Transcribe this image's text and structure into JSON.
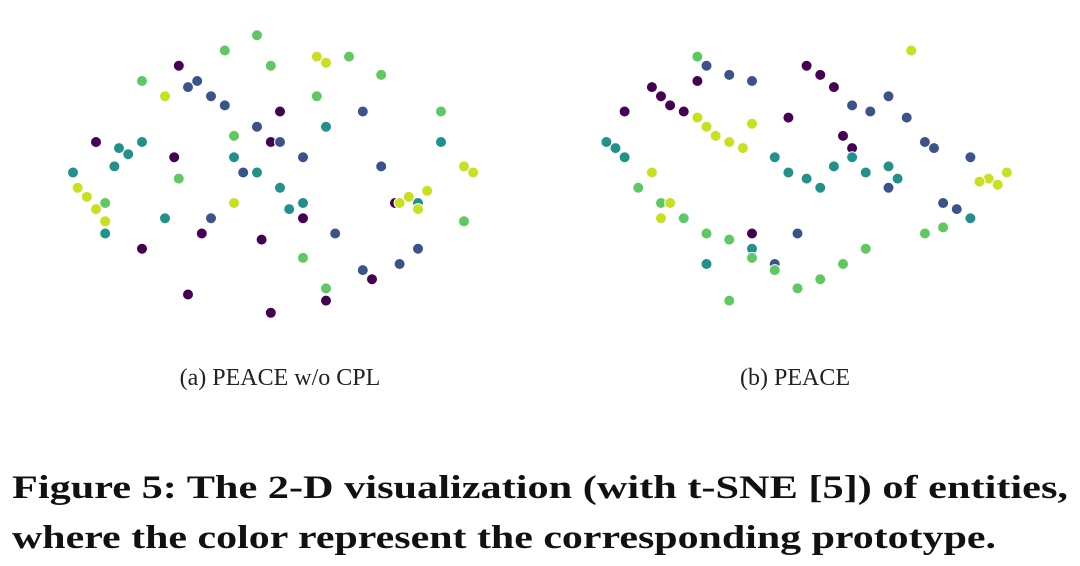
{
  "chart_data": [
    {
      "type": "scatter",
      "subcaption": "(a)  PEACE w/o CPL",
      "series": [
        {
          "color": "#440154",
          "x": [
            10,
            27,
            33,
            46,
            48,
            50,
            30,
            55,
            70,
            75,
            28,
            20,
            60,
            48
          ],
          "values": [
            60,
            55,
            30,
            28,
            60,
            70,
            10,
            35,
            15,
            40,
            85,
            25,
            8,
            4
          ]
        },
        {
          "color": "#3b528b",
          "x": [
            30,
            32,
            35,
            38,
            45,
            50,
            55,
            62,
            68,
            72,
            76,
            80,
            68,
            35,
            42
          ],
          "values": [
            78,
            80,
            75,
            72,
            65,
            60,
            55,
            30,
            70,
            52,
            20,
            25,
            18,
            35,
            50
          ]
        },
        {
          "color": "#21918c",
          "x": [
            15,
            17,
            14,
            20,
            40,
            45,
            50,
            52,
            55,
            60,
            25,
            80,
            85,
            5,
            12
          ],
          "values": [
            58,
            56,
            52,
            60,
            55,
            50,
            45,
            38,
            40,
            65,
            35,
            40,
            60,
            50,
            30
          ]
        },
        {
          "color": "#5ec962",
          "x": [
            12,
            28,
            40,
            45,
            20,
            55,
            60,
            72,
            85,
            90,
            65,
            38,
            48,
            58
          ],
          "values": [
            40,
            48,
            62,
            95,
            80,
            22,
            12,
            82,
            70,
            34,
            88,
            90,
            85,
            75
          ]
        },
        {
          "color": "#c8e020",
          "x": [
            6,
            8,
            10,
            12,
            76,
            78,
            80,
            82,
            90,
            92,
            58,
            60,
            40,
            25
          ],
          "values": [
            45,
            42,
            38,
            34,
            40,
            42,
            38,
            44,
            52,
            50,
            88,
            86,
            40,
            75
          ]
        }
      ]
    },
    {
      "type": "scatter",
      "subcaption": "(b)  PEACE",
      "series": [
        {
          "color": "#440154",
          "x": [
            18,
            20,
            22,
            25,
            28,
            55,
            58,
            60,
            62,
            48,
            52,
            12,
            40
          ],
          "values": [
            78,
            75,
            72,
            70,
            80,
            82,
            78,
            62,
            58,
            68,
            85,
            70,
            30
          ]
        },
        {
          "color": "#3b528b",
          "x": [
            30,
            35,
            40,
            62,
            66,
            70,
            74,
            78,
            80,
            82,
            85,
            88,
            70,
            50,
            45
          ],
          "values": [
            85,
            82,
            80,
            72,
            70,
            75,
            68,
            60,
            58,
            40,
            38,
            55,
            45,
            30,
            20
          ]
        },
        {
          "color": "#21918c",
          "x": [
            8,
            10,
            12,
            45,
            48,
            52,
            55,
            58,
            62,
            65,
            70,
            72,
            40,
            30,
            88
          ],
          "values": [
            60,
            58,
            55,
            55,
            50,
            48,
            45,
            52,
            55,
            50,
            52,
            48,
            25,
            20,
            35
          ]
        },
        {
          "color": "#5ec962",
          "x": [
            15,
            20,
            25,
            30,
            35,
            40,
            45,
            50,
            55,
            60,
            65,
            78,
            82,
            35,
            28
          ],
          "values": [
            45,
            40,
            35,
            30,
            28,
            22,
            18,
            12,
            15,
            20,
            25,
            30,
            32,
            8,
            88
          ]
        },
        {
          "color": "#c8e020",
          "x": [
            28,
            30,
            32,
            35,
            38,
            40,
            92,
            94,
            96,
            90,
            22,
            18,
            20,
            75
          ],
          "values": [
            68,
            65,
            62,
            60,
            58,
            66,
            48,
            46,
            50,
            47,
            40,
            50,
            35,
            90
          ]
        }
      ]
    }
  ],
  "caption_lines": [
    "Figure 5: The 2-D visualization (with t-SNE [5]) of entities,",
    "where the color represent the corresponding prototype."
  ]
}
